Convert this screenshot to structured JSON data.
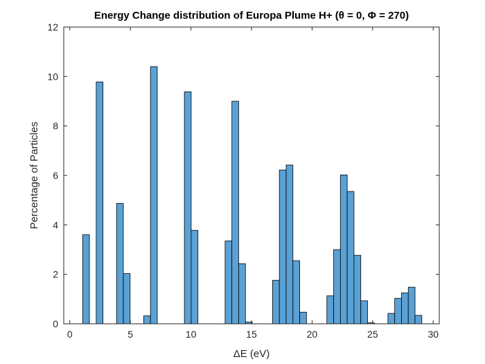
{
  "chart_data": {
    "type": "bar",
    "title": "Energy Change distribution of Europa Plume H+ (θ = 0, Φ = 270)",
    "xlabel": "ΔE (eV)",
    "ylabel": "Percentage of Particles",
    "xlim": [
      -0.5,
      30.5
    ],
    "ylim": [
      0,
      12
    ],
    "xticks": [
      0,
      5,
      10,
      15,
      20,
      25,
      30
    ],
    "yticks": [
      0,
      2,
      4,
      6,
      8,
      10,
      12
    ],
    "bin_width": 0.56,
    "grid": false,
    "bar_color": "#5aa1d5",
    "bar_edge_color": "#000000",
    "bins": [
      {
        "left": 1.06,
        "value": 3.6
      },
      {
        "left": 2.18,
        "value": 9.78
      },
      {
        "left": 3.86,
        "value": 4.87
      },
      {
        "left": 4.42,
        "value": 2.03
      },
      {
        "left": 6.1,
        "value": 0.32
      },
      {
        "left": 6.66,
        "value": 10.4
      },
      {
        "left": 9.46,
        "value": 9.38
      },
      {
        "left": 10.02,
        "value": 3.78
      },
      {
        "left": 12.82,
        "value": 3.35
      },
      {
        "left": 13.38,
        "value": 9.0
      },
      {
        "left": 13.94,
        "value": 2.43
      },
      {
        "left": 14.5,
        "value": 0.07
      },
      {
        "left": 16.74,
        "value": 1.76
      },
      {
        "left": 17.3,
        "value": 6.22
      },
      {
        "left": 17.86,
        "value": 6.42
      },
      {
        "left": 18.42,
        "value": 2.55
      },
      {
        "left": 18.98,
        "value": 0.47
      },
      {
        "left": 21.22,
        "value": 1.13
      },
      {
        "left": 21.78,
        "value": 3.0
      },
      {
        "left": 22.34,
        "value": 6.02
      },
      {
        "left": 22.9,
        "value": 5.35
      },
      {
        "left": 23.46,
        "value": 2.77
      },
      {
        "left": 24.02,
        "value": 0.93
      },
      {
        "left": 24.58,
        "value": 0.04
      },
      {
        "left": 26.26,
        "value": 0.42
      },
      {
        "left": 26.82,
        "value": 1.03
      },
      {
        "left": 27.38,
        "value": 1.25
      },
      {
        "left": 27.94,
        "value": 1.48
      },
      {
        "left": 28.5,
        "value": 0.34
      }
    ]
  }
}
